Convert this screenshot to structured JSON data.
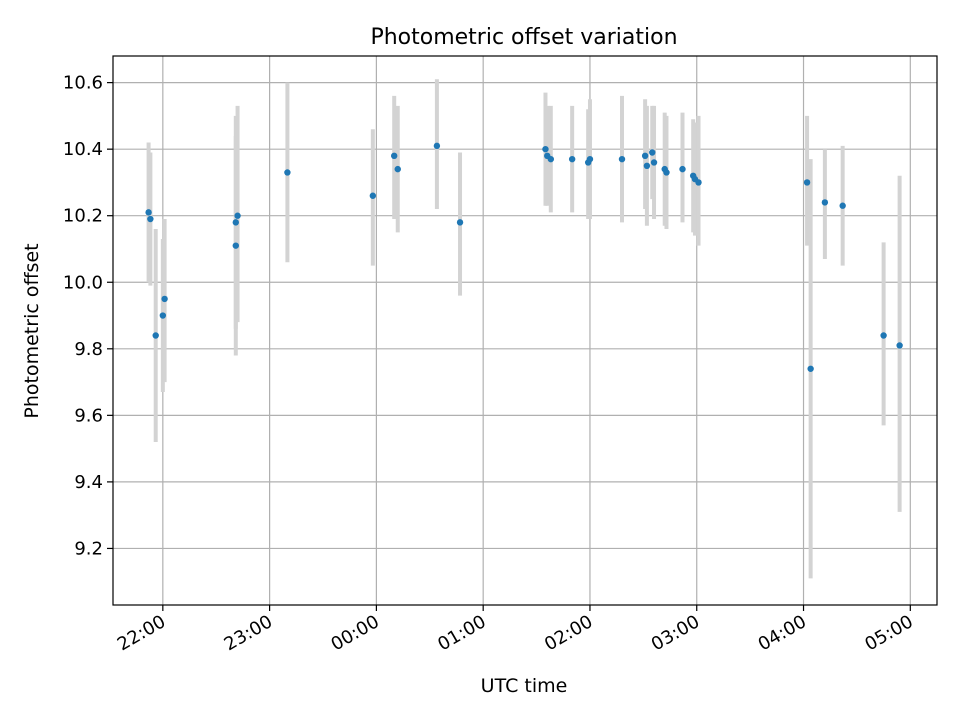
{
  "chart_data": {
    "type": "scatter",
    "title": "Photometric offset variation",
    "xlabel": "UTC time",
    "ylabel": "Photometric offset",
    "x_tick_labels": [
      "22:00",
      "23:00",
      "00:00",
      "01:00",
      "02:00",
      "03:00",
      "04:00",
      "05:00"
    ],
    "y_tick_labels": [
      "9.2",
      "9.4",
      "9.6",
      "9.8",
      "10.0",
      "10.2",
      "10.4",
      "10.6"
    ],
    "xlim": [
      "21:32",
      "05:15"
    ],
    "ylim": [
      9.03,
      10.68
    ],
    "grid": true,
    "colors": {
      "points": "#1f77b4",
      "errorbars": "#d3d3d3",
      "grid": "#b0b0b0"
    },
    "points": [
      {
        "time": "21:52",
        "y": 10.21,
        "yerr_low": 10.0,
        "yerr_high": 10.42
      },
      {
        "time": "21:53",
        "y": 10.19,
        "yerr_low": 9.99,
        "yerr_high": 10.39
      },
      {
        "time": "21:56",
        "y": 9.84,
        "yerr_low": 9.52,
        "yerr_high": 10.16
      },
      {
        "time": "22:00",
        "y": 9.9,
        "yerr_low": 9.67,
        "yerr_high": 10.13
      },
      {
        "time": "22:01",
        "y": 9.95,
        "yerr_low": 9.7,
        "yerr_high": 10.19
      },
      {
        "time": "22:41",
        "y": 10.11,
        "yerr_low": 9.78,
        "yerr_high": 10.44
      },
      {
        "time": "22:41",
        "y": 10.18,
        "yerr_low": 9.86,
        "yerr_high": 10.5
      },
      {
        "time": "22:42",
        "y": 10.2,
        "yerr_low": 9.88,
        "yerr_high": 10.53
      },
      {
        "time": "23:10",
        "y": 10.33,
        "yerr_low": 10.06,
        "yerr_high": 10.6
      },
      {
        "time": "23:58",
        "y": 10.26,
        "yerr_low": 10.05,
        "yerr_high": 10.46
      },
      {
        "time": "00:10",
        "y": 10.38,
        "yerr_low": 10.19,
        "yerr_high": 10.56
      },
      {
        "time": "00:12",
        "y": 10.34,
        "yerr_low": 10.15,
        "yerr_high": 10.53
      },
      {
        "time": "00:34",
        "y": 10.41,
        "yerr_low": 10.22,
        "yerr_high": 10.61
      },
      {
        "time": "00:47",
        "y": 10.18,
        "yerr_low": 9.96,
        "yerr_high": 10.39
      },
      {
        "time": "01:35",
        "y": 10.4,
        "yerr_low": 10.23,
        "yerr_high": 10.57
      },
      {
        "time": "01:36",
        "y": 10.38,
        "yerr_low": 10.23,
        "yerr_high": 10.53
      },
      {
        "time": "01:38",
        "y": 10.37,
        "yerr_low": 10.21,
        "yerr_high": 10.53
      },
      {
        "time": "01:50",
        "y": 10.37,
        "yerr_low": 10.21,
        "yerr_high": 10.53
      },
      {
        "time": "01:59",
        "y": 10.36,
        "yerr_low": 10.19,
        "yerr_high": 10.52
      },
      {
        "time": "02:00",
        "y": 10.37,
        "yerr_low": 10.19,
        "yerr_high": 10.55
      },
      {
        "time": "02:18",
        "y": 10.37,
        "yerr_low": 10.18,
        "yerr_high": 10.56
      },
      {
        "time": "02:31",
        "y": 10.38,
        "yerr_low": 10.22,
        "yerr_high": 10.55
      },
      {
        "time": "02:32",
        "y": 10.35,
        "yerr_low": 10.17,
        "yerr_high": 10.53
      },
      {
        "time": "02:35",
        "y": 10.39,
        "yerr_low": 10.25,
        "yerr_high": 10.53
      },
      {
        "time": "02:36",
        "y": 10.36,
        "yerr_low": 10.19,
        "yerr_high": 10.53
      },
      {
        "time": "02:42",
        "y": 10.34,
        "yerr_low": 10.17,
        "yerr_high": 10.51
      },
      {
        "time": "02:43",
        "y": 10.33,
        "yerr_low": 10.16,
        "yerr_high": 10.5
      },
      {
        "time": "02:52",
        "y": 10.34,
        "yerr_low": 10.18,
        "yerr_high": 10.51
      },
      {
        "time": "02:58",
        "y": 10.32,
        "yerr_low": 10.15,
        "yerr_high": 10.49
      },
      {
        "time": "02:59",
        "y": 10.31,
        "yerr_low": 10.14,
        "yerr_high": 10.48
      },
      {
        "time": "03:01",
        "y": 10.3,
        "yerr_low": 10.11,
        "yerr_high": 10.5
      },
      {
        "time": "04:02",
        "y": 10.3,
        "yerr_low": 10.11,
        "yerr_high": 10.5
      },
      {
        "time": "04:04",
        "y": 9.74,
        "yerr_low": 9.11,
        "yerr_high": 10.37
      },
      {
        "time": "04:12",
        "y": 10.24,
        "yerr_low": 10.07,
        "yerr_high": 10.4
      },
      {
        "time": "04:22",
        "y": 10.23,
        "yerr_low": 10.05,
        "yerr_high": 10.41
      },
      {
        "time": "04:45",
        "y": 9.84,
        "yerr_low": 9.57,
        "yerr_high": 10.12
      },
      {
        "time": "04:54",
        "y": 9.81,
        "yerr_low": 9.31,
        "yerr_high": 10.32
      }
    ]
  }
}
